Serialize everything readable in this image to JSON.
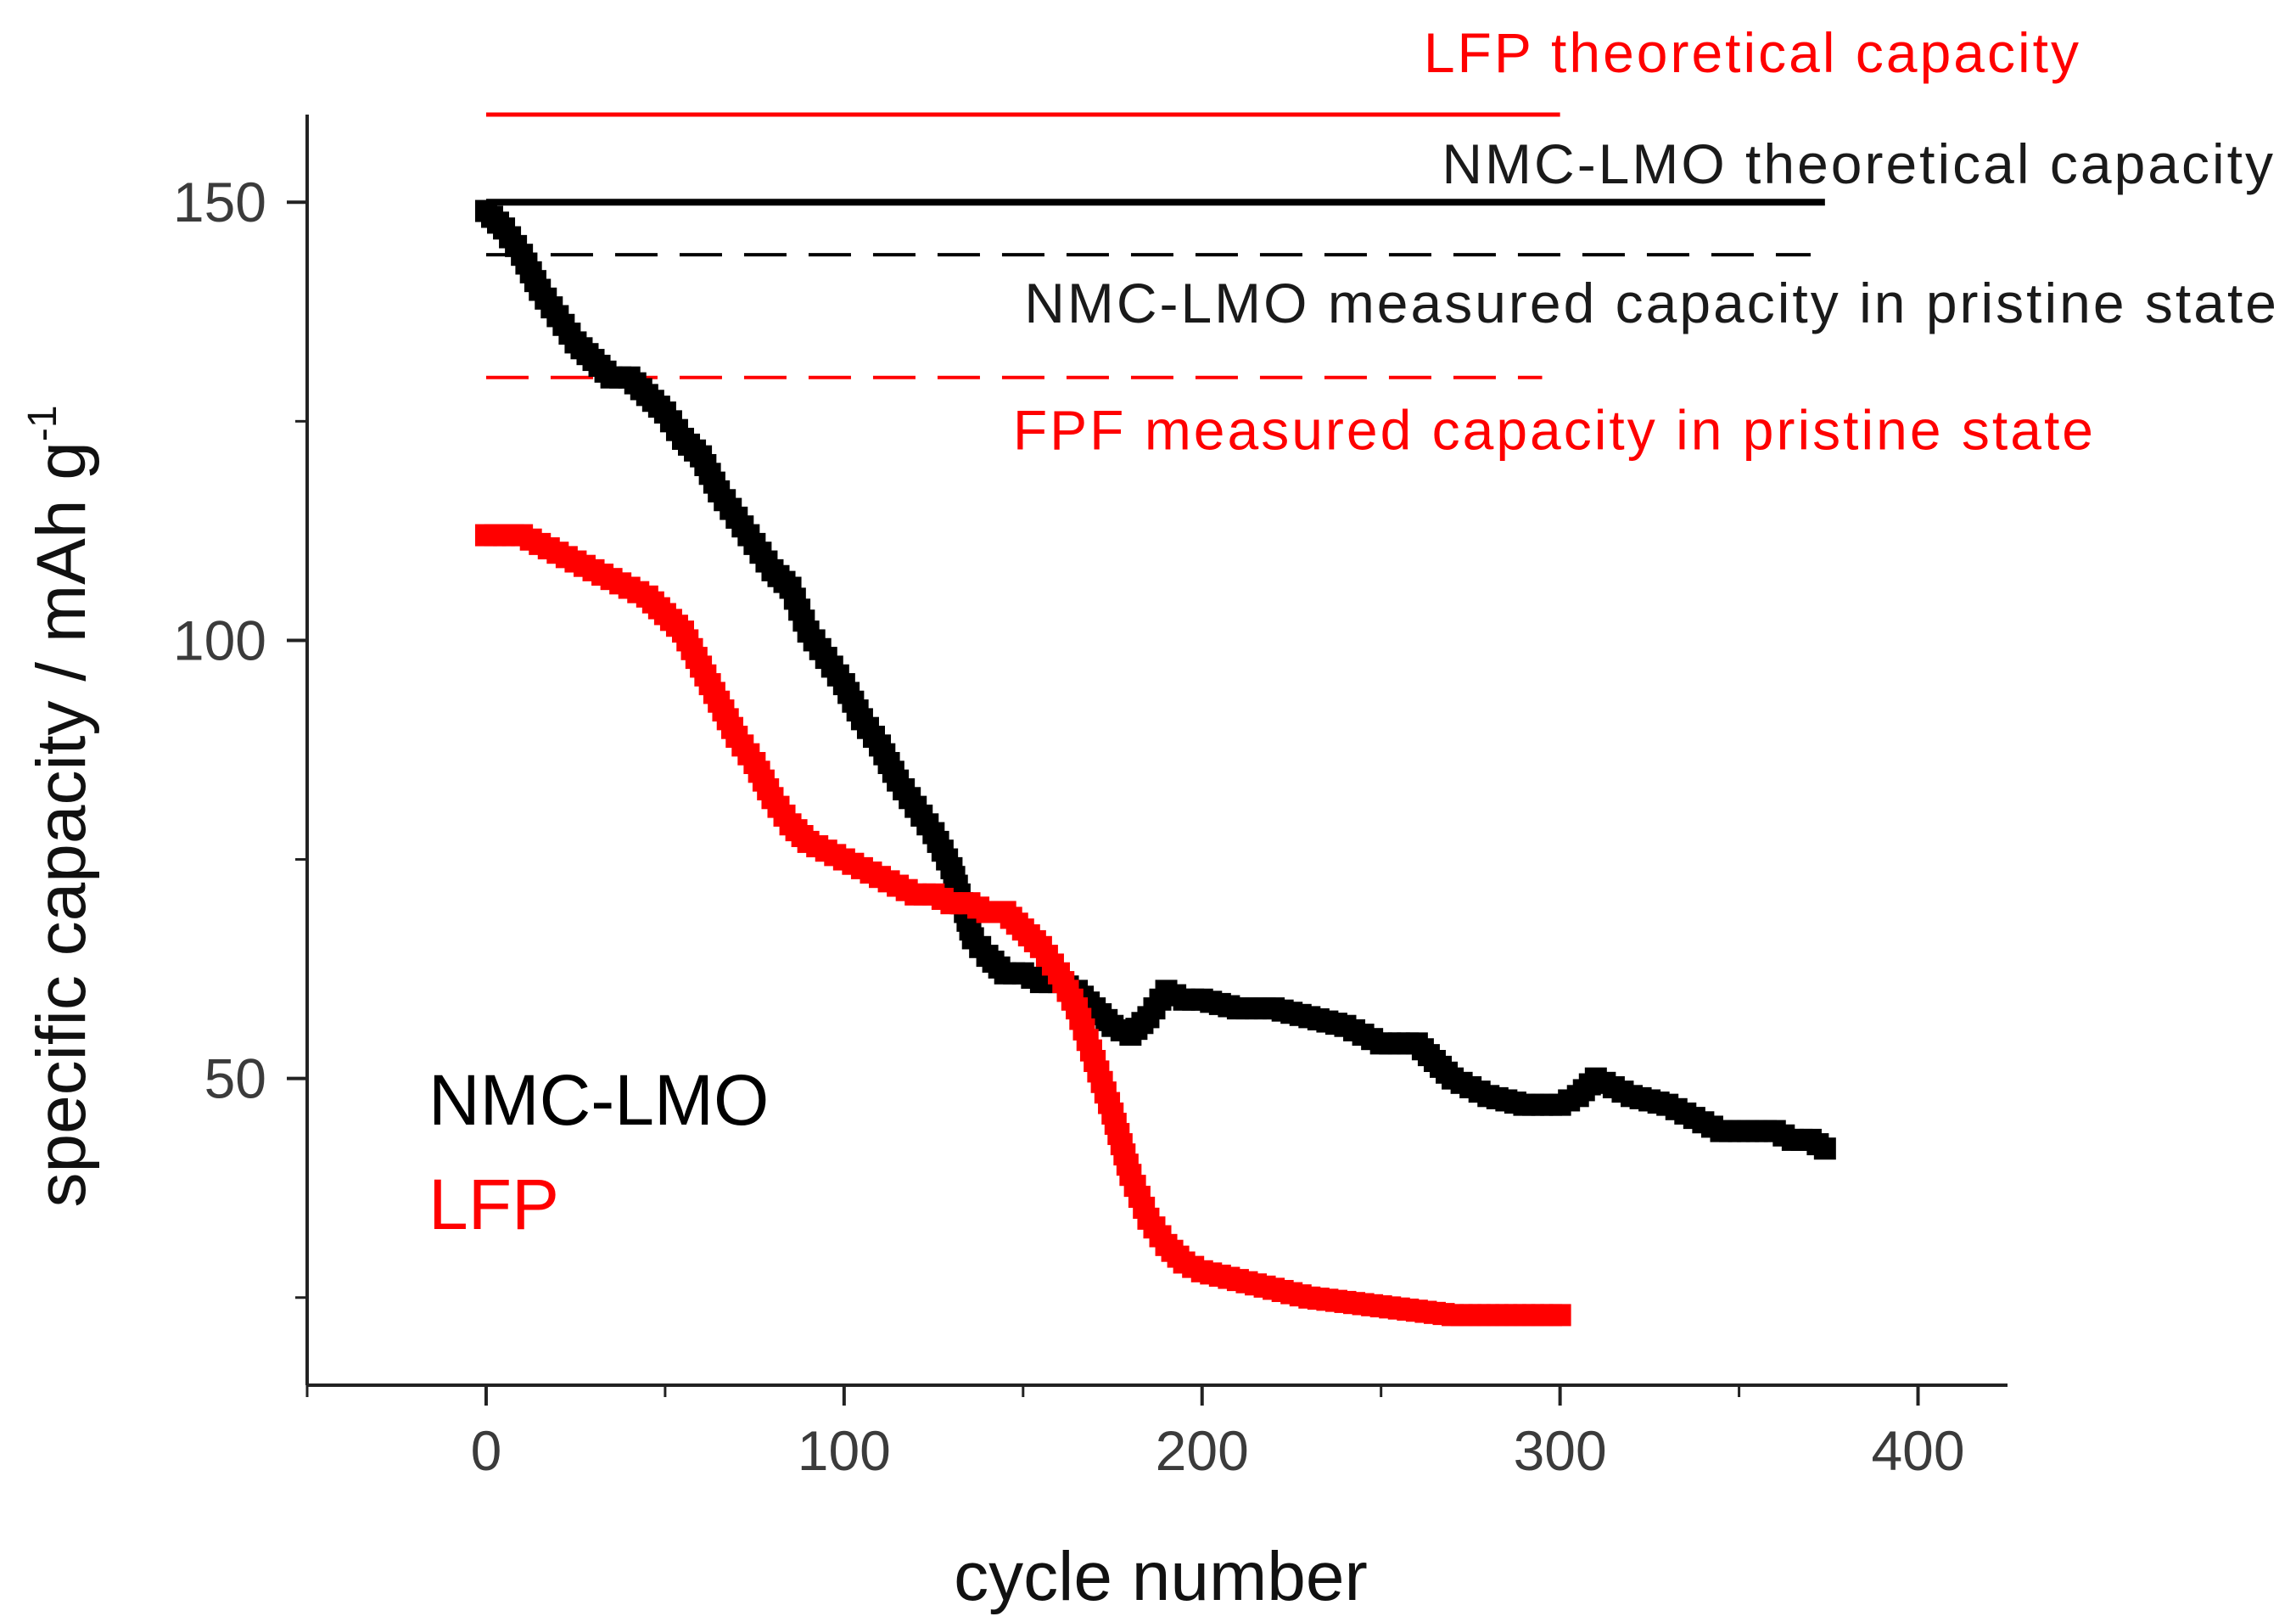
{
  "chart_data": {
    "type": "scatter",
    "xlabel": "cycle number",
    "ylabel": "specific capacity / mAh g",
    "ylabel_superscript": "-1",
    "xlim": [
      -50,
      425
    ],
    "ylim": [
      15,
      160
    ],
    "x_ticks": [
      0,
      100,
      200,
      300,
      400
    ],
    "x_tick_labels": [
      "0",
      "100",
      "200",
      "300",
      "400"
    ],
    "y_ticks": [
      50,
      100,
      150
    ],
    "y_tick_labels": [
      "50",
      "100",
      "150"
    ],
    "y_minor_ticks": [
      25,
      75,
      125
    ],
    "x_minor_ticks": [
      -50,
      50,
      150,
      250,
      350
    ],
    "grid": false,
    "series": [
      {
        "name": "NMC-LMO",
        "color": "#000000",
        "marker": "square",
        "points": [
          [
            0,
            149
          ],
          [
            5,
            147
          ],
          [
            10,
            144
          ],
          [
            15,
            140
          ],
          [
            20,
            137
          ],
          [
            25,
            134
          ],
          [
            30,
            132
          ],
          [
            35,
            130
          ],
          [
            40,
            130
          ],
          [
            45,
            128
          ],
          [
            50,
            126
          ],
          [
            55,
            123
          ],
          [
            60,
            121
          ],
          [
            65,
            117
          ],
          [
            70,
            114
          ],
          [
            75,
            111
          ],
          [
            80,
            108
          ],
          [
            85,
            106
          ],
          [
            90,
            101
          ],
          [
            95,
            98
          ],
          [
            100,
            95
          ],
          [
            105,
            91
          ],
          [
            110,
            88
          ],
          [
            115,
            84
          ],
          [
            120,
            81
          ],
          [
            125,
            78
          ],
          [
            130,
            74
          ],
          [
            133,
            70
          ],
          [
            136,
            66
          ],
          [
            140,
            64
          ],
          [
            145,
            62
          ],
          [
            150,
            62
          ],
          [
            155,
            61
          ],
          [
            160,
            61
          ],
          [
            165,
            60
          ],
          [
            170,
            58
          ],
          [
            175,
            56
          ],
          [
            180,
            55
          ],
          [
            185,
            57
          ],
          [
            190,
            60
          ],
          [
            195,
            59
          ],
          [
            200,
            59
          ],
          [
            210,
            58
          ],
          [
            220,
            58
          ],
          [
            230,
            57
          ],
          [
            240,
            56
          ],
          [
            250,
            54
          ],
          [
            260,
            54
          ],
          [
            265,
            52
          ],
          [
            270,
            50
          ],
          [
            280,
            48
          ],
          [
            290,
            47
          ],
          [
            300,
            47
          ],
          [
            305,
            48
          ],
          [
            310,
            50
          ],
          [
            315,
            49
          ],
          [
            320,
            48
          ],
          [
            330,
            47
          ],
          [
            340,
            45
          ],
          [
            345,
            44
          ],
          [
            350,
            44
          ],
          [
            355,
            44
          ],
          [
            360,
            44
          ],
          [
            365,
            43
          ],
          [
            370,
            43
          ],
          [
            374,
            42
          ]
        ]
      },
      {
        "name": "LFP",
        "color": "#ff0000",
        "marker": "square",
        "points": [
          [
            0,
            112
          ],
          [
            5,
            112
          ],
          [
            10,
            112
          ],
          [
            15,
            111
          ],
          [
            20,
            110
          ],
          [
            25,
            109
          ],
          [
            30,
            108
          ],
          [
            35,
            107
          ],
          [
            40,
            106
          ],
          [
            45,
            105
          ],
          [
            50,
            103
          ],
          [
            55,
            101
          ],
          [
            60,
            97
          ],
          [
            65,
            93
          ],
          [
            70,
            89
          ],
          [
            75,
            86
          ],
          [
            80,
            82
          ],
          [
            85,
            79
          ],
          [
            90,
            77
          ],
          [
            95,
            76
          ],
          [
            100,
            75
          ],
          [
            105,
            74
          ],
          [
            110,
            73
          ],
          [
            115,
            72
          ],
          [
            120,
            71
          ],
          [
            125,
            71
          ],
          [
            130,
            70
          ],
          [
            135,
            70
          ],
          [
            140,
            69
          ],
          [
            145,
            69
          ],
          [
            150,
            67
          ],
          [
            155,
            65
          ],
          [
            160,
            62
          ],
          [
            165,
            58
          ],
          [
            170,
            52
          ],
          [
            175,
            46
          ],
          [
            180,
            39
          ],
          [
            185,
            34
          ],
          [
            190,
            31
          ],
          [
            195,
            29
          ],
          [
            200,
            28
          ],
          [
            210,
            27
          ],
          [
            220,
            26
          ],
          [
            230,
            25
          ],
          [
            240,
            24.5
          ],
          [
            250,
            24
          ],
          [
            260,
            23.5
          ],
          [
            270,
            23
          ],
          [
            280,
            23
          ],
          [
            290,
            23
          ],
          [
            300,
            23
          ]
        ]
      }
    ],
    "reference_lines": [
      {
        "label": "LFP theoretical capacity",
        "y": 160,
        "x_start": 0,
        "x_end": 300,
        "color": "#ff0000",
        "style": "solid"
      },
      {
        "label": "NMC-LMO theoretical capacity",
        "y": 150,
        "x_start": 0,
        "x_end": 374,
        "color": "#000000",
        "style": "solid"
      },
      {
        "label": "NMC-LMO measured capacity in pristine state",
        "y": 144,
        "x_start": 0,
        "x_end": 370,
        "color": "#000000",
        "style": "dashed"
      },
      {
        "label": "FPF measured capacity in pristine state",
        "y": 130,
        "x_start": 0,
        "x_end": 295,
        "color": "#ff0000",
        "style": "dashed"
      }
    ],
    "legend": {
      "placement": "lower-left",
      "entries": [
        {
          "label": "NMC-LMO",
          "color": "#000000"
        },
        {
          "label": "LFP",
          "color": "#ff0000"
        }
      ]
    }
  }
}
